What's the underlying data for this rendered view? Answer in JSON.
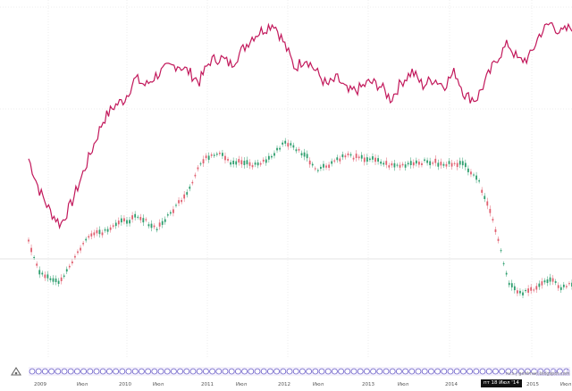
{
  "chart_data": {
    "type": "line",
    "x_tick_labels": [
      "2009",
      "Июл",
      "2010",
      "Июл",
      "2011",
      "Июл",
      "2012",
      "Июл",
      "2013",
      "Июл",
      "2014",
      "Июл",
      "2015",
      "Июл"
    ],
    "series": [
      {
        "color": "#c2185b",
        "style": "line",
        "values": [
          0.57,
          0.48,
          0.42,
          0.38,
          0.44,
          0.52,
          0.6,
          0.68,
          0.72,
          0.74,
          0.8,
          0.78,
          0.81,
          0.83,
          0.84,
          0.82,
          0.79,
          0.85,
          0.86,
          0.84,
          0.88,
          0.92,
          0.94,
          0.96,
          0.9,
          0.83,
          0.86,
          0.82,
          0.78,
          0.8,
          0.76,
          0.77,
          0.79,
          0.78,
          0.74,
          0.79,
          0.82,
          0.78,
          0.8,
          0.78,
          0.82,
          0.75,
          0.74,
          0.8,
          0.86,
          0.9,
          0.85,
          0.86,
          0.93,
          0.96,
          0.93,
          0.95
        ]
      },
      {
        "color": "#2e9e6e",
        "style": "candles",
        "values": [
          0.33,
          0.25,
          0.22,
          0.22,
          0.27,
          0.32,
          0.36,
          0.36,
          0.38,
          0.39,
          0.4,
          0.39,
          0.37,
          0.4,
          0.44,
          0.48,
          0.55,
          0.58,
          0.59,
          0.56,
          0.56,
          0.55,
          0.56,
          0.58,
          0.62,
          0.6,
          0.58,
          0.54,
          0.55,
          0.57,
          0.58,
          0.57,
          0.57,
          0.56,
          0.55,
          0.55,
          0.56,
          0.56,
          0.56,
          0.55,
          0.56,
          0.55,
          0.52,
          0.45,
          0.35,
          0.22,
          0.18,
          0.19,
          0.21,
          0.22,
          0.2,
          0.21
        ]
      }
    ],
    "ylim": [
      0,
      1
    ],
    "grid": true
  },
  "watermark": "ru.s | goldman.blogspot.com",
  "cursor_label": "пт 18 Июл '14",
  "navigator_icon": "scroll-icon"
}
